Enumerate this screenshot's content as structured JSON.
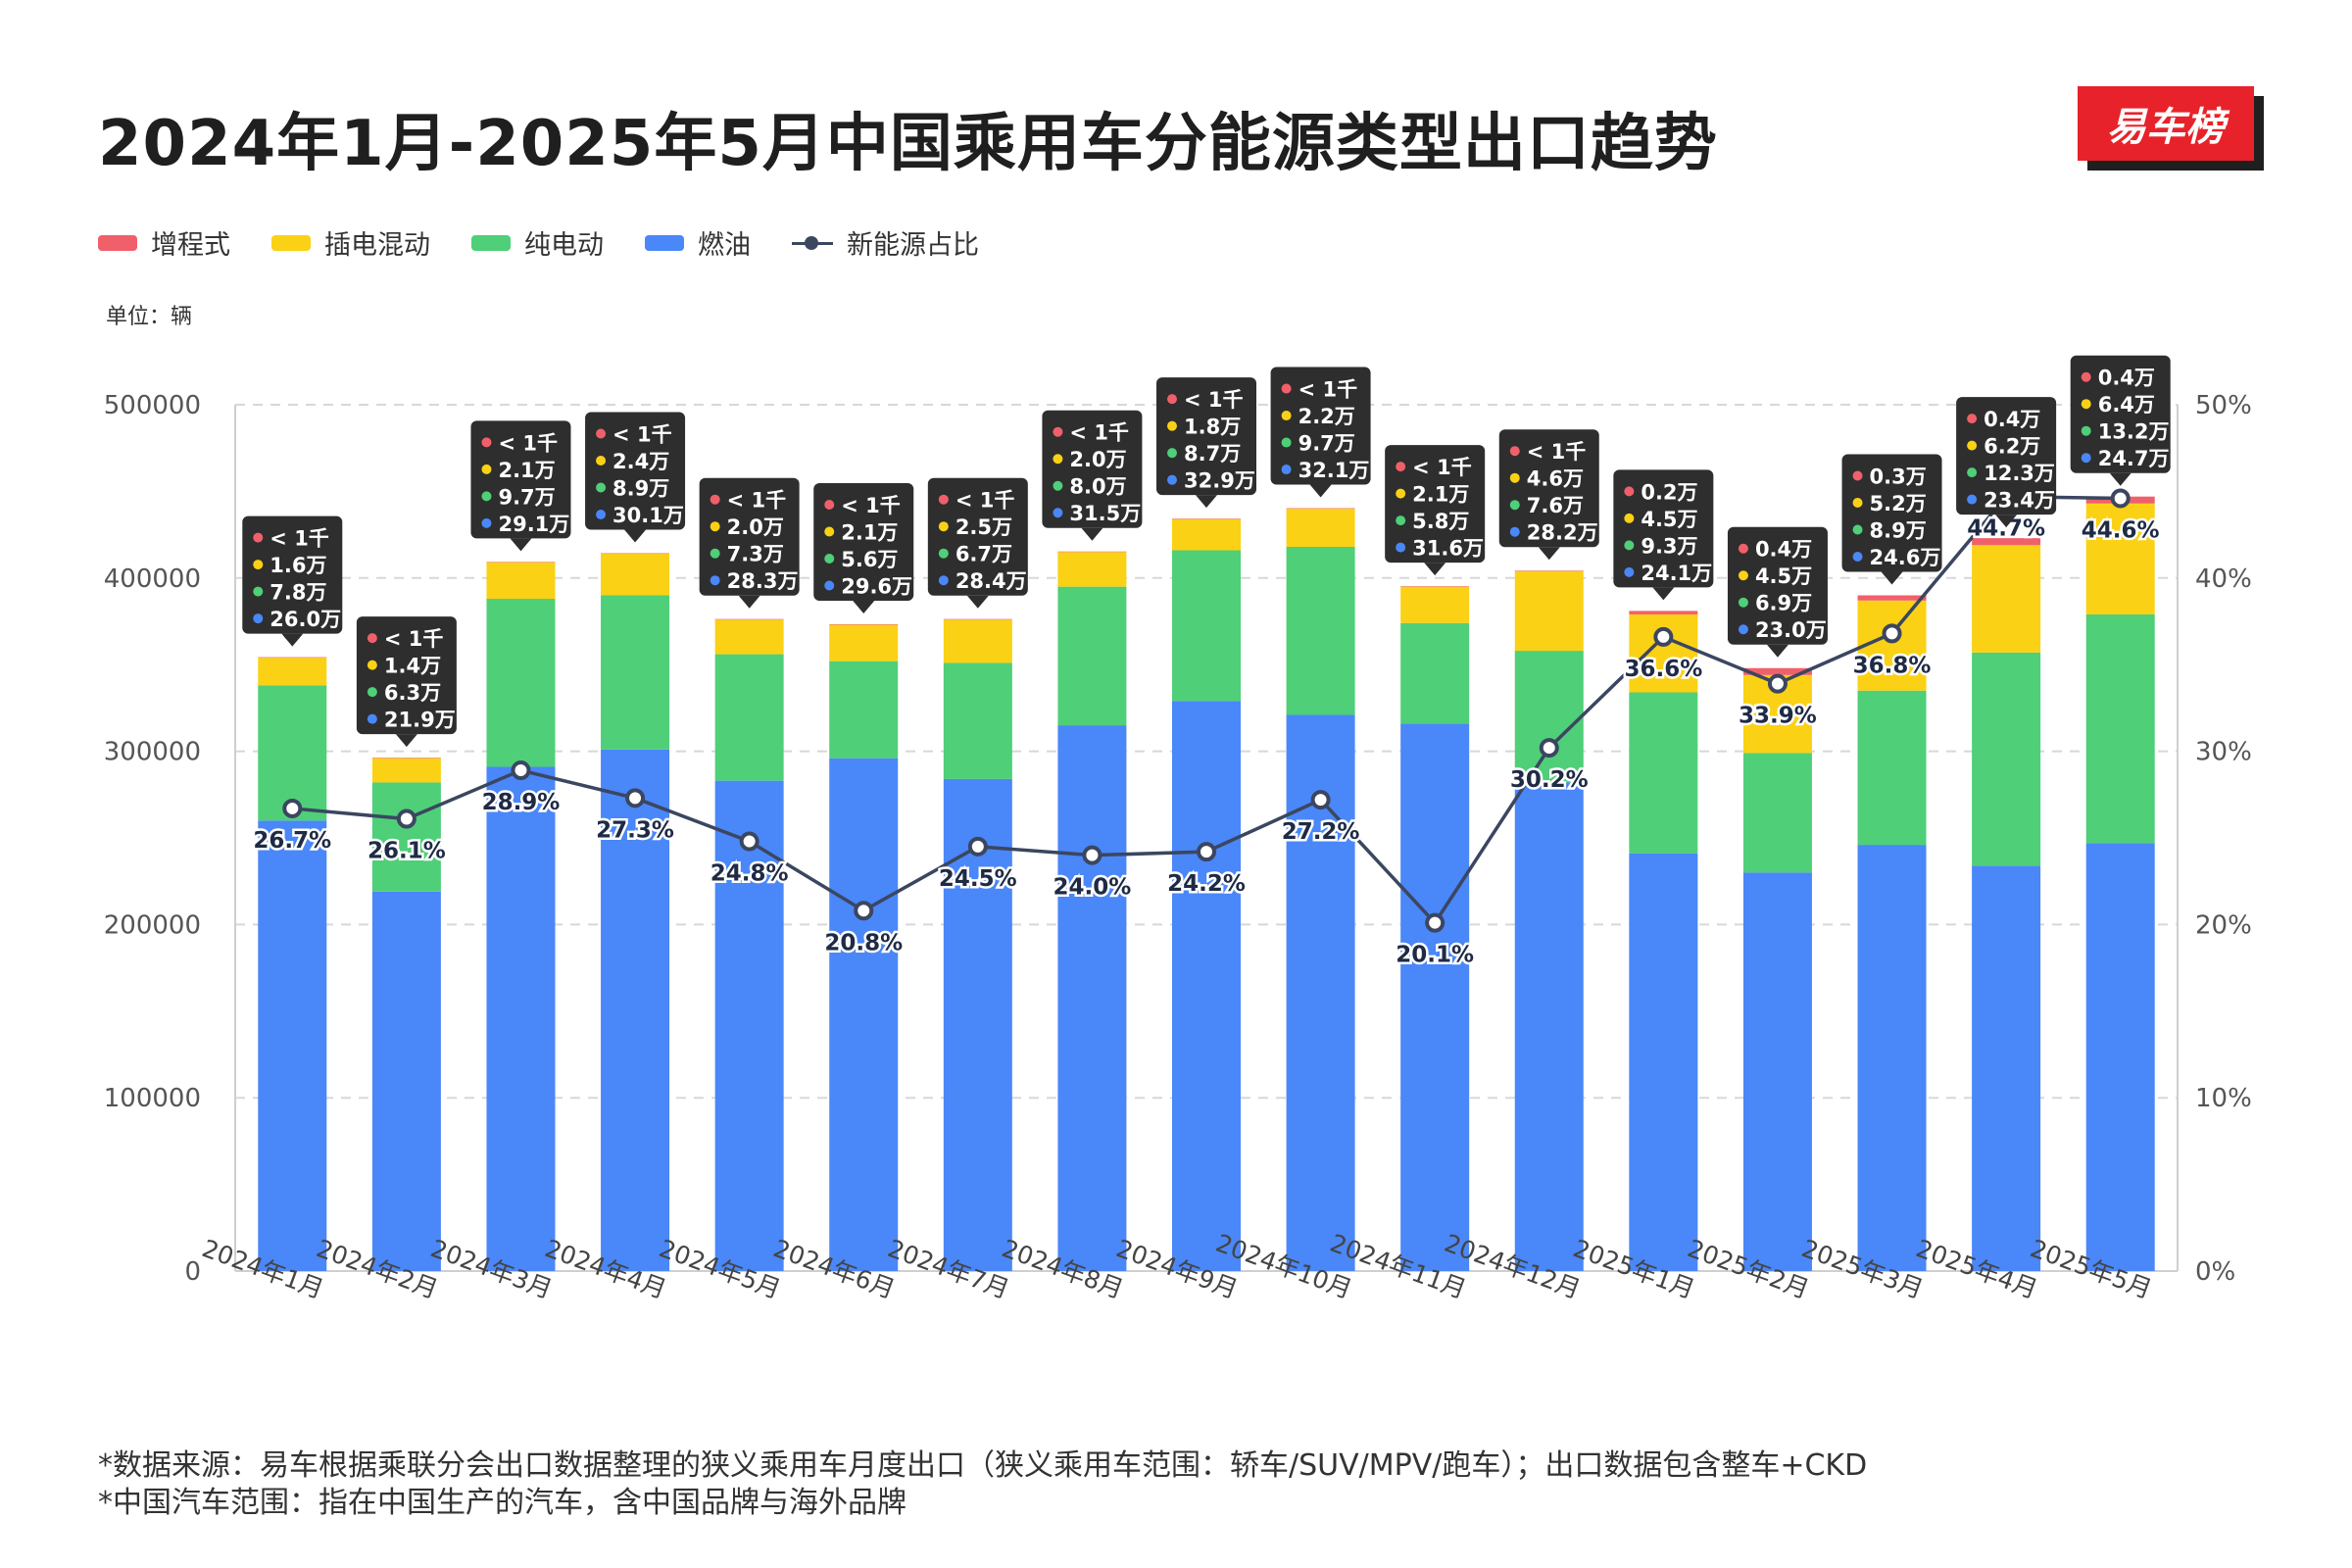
{
  "title": "2024年1月-2025年5月中国乘用车分能源类型出口趋势",
  "logo_text": "易车榜",
  "unit_label": "单位：辆",
  "legend": [
    {
      "name": "增程式",
      "color": "#f0606a",
      "kind": "bar"
    },
    {
      "name": "插电混动",
      "color": "#fad115",
      "kind": "bar"
    },
    {
      "name": "纯电动",
      "color": "#4fcf78",
      "kind": "bar"
    },
    {
      "name": "燃油",
      "color": "#4a87f8",
      "kind": "bar"
    },
    {
      "name": "新能源占比",
      "color": "#3b4660",
      "kind": "line"
    }
  ],
  "footnotes": [
    "*数据来源：易车根据乘联分会出口数据整理的狭义乘用车月度出口（狭义乘用车范围：轿车/SUV/MPV/跑车）；出口数据包含整车+CKD",
    "*中国汽车范围：指在中国生产的汽车，含中国品牌与海外品牌"
  ],
  "chart_data": {
    "type": "bar",
    "stacked": true,
    "title": "2024年1月-2025年5月中国乘用车分能源类型出口趋势",
    "ylabel_left": "单位：辆",
    "ylim": [
      0,
      500000
    ],
    "y2lim": [
      0,
      50
    ],
    "yticks": [
      "0",
      "100000",
      "200000",
      "300000",
      "400000",
      "500000"
    ],
    "y2ticks": [
      "0%",
      "10%",
      "20%",
      "30%",
      "40%",
      "50%"
    ],
    "grid": true,
    "categories": [
      "2024年1月",
      "2024年2月",
      "2024年3月",
      "2024年4月",
      "2024年5月",
      "2024年6月",
      "2024年7月",
      "2024年8月",
      "2024年9月",
      "2024年10月",
      "2024年11月",
      "2024年12月",
      "2025年1月",
      "2025年2月",
      "2025年3月",
      "2025年4月",
      "2025年5月"
    ],
    "series": [
      {
        "name": "燃油",
        "color": "#4a87f8",
        "values": [
          260000,
          219000,
          291000,
          301000,
          283000,
          296000,
          284000,
          315000,
          329000,
          321000,
          316000,
          282000,
          241000,
          230000,
          246000,
          234000,
          247000
        ],
        "labels": [
          "26.0万",
          "21.9万",
          "29.1万",
          "30.1万",
          "28.3万",
          "29.6万",
          "28.4万",
          "31.5万",
          "32.9万",
          "32.1万",
          "31.6万",
          "28.2万",
          "24.1万",
          "23.0万",
          "24.6万",
          "23.4万",
          "24.7万"
        ]
      },
      {
        "name": "纯电动",
        "color": "#4fcf78",
        "values": [
          78000,
          63000,
          97000,
          89000,
          73000,
          56000,
          67000,
          80000,
          87000,
          97000,
          58000,
          76000,
          93000,
          69000,
          89000,
          123000,
          132000
        ],
        "labels": [
          "7.8万",
          "6.3万",
          "9.7万",
          "8.9万",
          "7.3万",
          "5.6万",
          "6.7万",
          "8.0万",
          "8.7万",
          "9.7万",
          "5.8万",
          "7.6万",
          "9.3万",
          "6.9万",
          "8.9万",
          "12.3万",
          "13.2万"
        ]
      },
      {
        "name": "插电混动",
        "color": "#fad115",
        "values": [
          16000,
          14000,
          21000,
          24000,
          20000,
          21000,
          25000,
          20000,
          18000,
          22000,
          21000,
          46000,
          45000,
          45000,
          52000,
          62000,
          64000
        ],
        "labels": [
          "1.6万",
          "1.4万",
          "2.1万",
          "2.4万",
          "2.0万",
          "2.1万",
          "2.5万",
          "2.0万",
          "1.8万",
          "2.2万",
          "2.1万",
          "4.6万",
          "4.5万",
          "4.5万",
          "5.2万",
          "6.2万",
          "6.4万"
        ]
      },
      {
        "name": "增程式",
        "color": "#f0606a",
        "values": [
          300,
          300,
          300,
          300,
          300,
          300,
          300,
          300,
          300,
          300,
          300,
          300,
          2000,
          4000,
          3000,
          4000,
          4000
        ],
        "labels": [
          "< 1千",
          "< 1千",
          "< 1千",
          "< 1千",
          "< 1千",
          "< 1千",
          "< 1千",
          "< 1千",
          "< 1千",
          "< 1千",
          "< 1千",
          "< 1千",
          "0.2万",
          "0.4万",
          "0.3万",
          "0.4万",
          "0.4万"
        ]
      },
      {
        "name": "新能源占比",
        "type": "line",
        "axis": "right",
        "color": "#3b4660",
        "values": [
          26.7,
          26.1,
          28.9,
          27.3,
          24.8,
          20.8,
          24.5,
          24.0,
          24.2,
          27.2,
          20.1,
          30.2,
          36.6,
          33.9,
          36.8,
          44.7,
          44.6
        ],
        "labels": [
          "26.7%",
          "26.1%",
          "28.9%",
          "27.3%",
          "24.8%",
          "20.8%",
          "24.5%",
          "24.0%",
          "24.2%",
          "27.2%",
          "20.1%",
          "30.2%",
          "36.6%",
          "33.9%",
          "36.8%",
          "44.7%",
          "44.6%"
        ]
      }
    ]
  }
}
